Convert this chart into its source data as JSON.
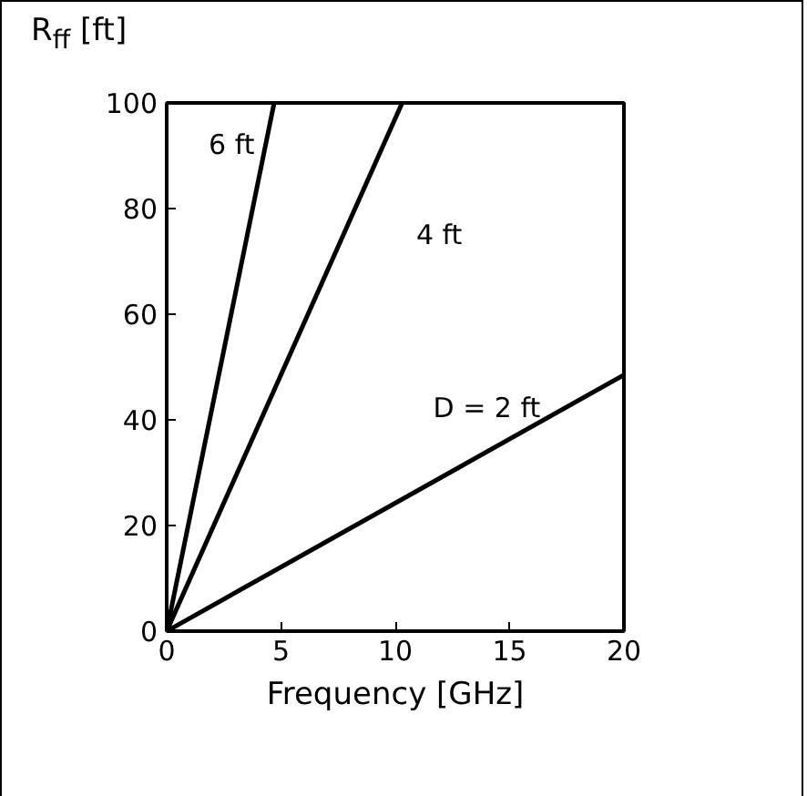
{
  "chart_data": {
    "type": "line",
    "xlabel": "Frequency [GHz]",
    "ylabel": "R$_{ff}$ [ft]",
    "series": [
      {
        "name": "D = 2 ft",
        "color": "#000000",
        "x": [
          0,
          20
        ],
        "values": [
          0,
          48.5
        ]
      },
      {
        "name": "4 ft",
        "color": "#000000",
        "x": [
          0,
          10.3
        ],
        "values": [
          0,
          100
        ]
      },
      {
        "name": "6 ft",
        "color": "#000000",
        "x": [
          0,
          4.7
        ],
        "values": [
          0,
          100
        ]
      }
    ],
    "xlim": [
      0,
      20
    ],
    "ylim": [
      0,
      100
    ],
    "xticks": [
      0,
      5,
      10,
      15,
      20
    ],
    "yticks": [
      0,
      20,
      40,
      60,
      80,
      100
    ],
    "grid": false,
    "marker": "none",
    "line_style": "solid"
  }
}
